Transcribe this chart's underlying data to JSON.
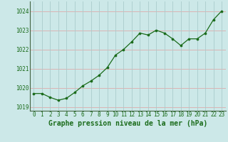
{
  "x": [
    0,
    1,
    2,
    3,
    4,
    5,
    6,
    7,
    8,
    9,
    10,
    11,
    12,
    13,
    14,
    15,
    16,
    17,
    18,
    19,
    20,
    21,
    22,
    23
  ],
  "y": [
    1019.7,
    1019.7,
    1019.5,
    1019.35,
    1019.45,
    1019.75,
    1020.1,
    1020.35,
    1020.65,
    1021.05,
    1021.7,
    1022.0,
    1022.4,
    1022.85,
    1022.75,
    1023.0,
    1022.85,
    1022.55,
    1022.2,
    1022.55,
    1022.55,
    1022.85,
    1023.55,
    1024.0
  ],
  "line_color": "#1a6b1a",
  "marker_color": "#1a6b1a",
  "bg_color": "#cce8e8",
  "grid_color_h": "#ddaaaa",
  "grid_color_v": "#aacccc",
  "xlabel": "Graphe pression niveau de la mer (hPa)",
  "xlabel_color": "#1a6b1a",
  "tick_color": "#1a6b1a",
  "ylim": [
    1018.8,
    1024.5
  ],
  "yticks": [
    1019,
    1020,
    1021,
    1022,
    1023,
    1024
  ],
  "xticks": [
    0,
    1,
    2,
    3,
    4,
    5,
    6,
    7,
    8,
    9,
    10,
    11,
    12,
    13,
    14,
    15,
    16,
    17,
    18,
    19,
    20,
    21,
    22,
    23
  ],
  "tick_fontsize": 5.5,
  "xlabel_fontsize": 7.0
}
